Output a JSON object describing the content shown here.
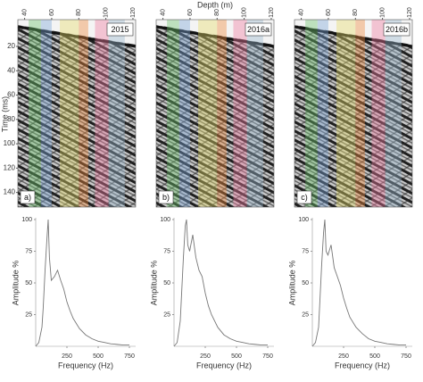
{
  "chart_data": [
    {
      "type": "image",
      "label": "2015",
      "panel": "a)",
      "xlim": [
        35,
        122
      ],
      "xticks": [
        40,
        60,
        80,
        100,
        120
      ],
      "ylim": [
        -2,
        152
      ],
      "yticks": [
        20,
        40,
        60,
        80,
        100,
        120,
        140
      ],
      "ylabel": "Time (ms)",
      "bands": [
        {
          "start": 43,
          "end": 52,
          "color": "#6cc46c"
        },
        {
          "start": 52,
          "end": 60,
          "color": "#7aa6d8"
        },
        {
          "start": 66,
          "end": 80,
          "color": "#e6dc6a"
        },
        {
          "start": 80,
          "end": 87,
          "color": "#f08a3c"
        },
        {
          "start": 92,
          "end": 102,
          "color": "#f07aa0"
        },
        {
          "start": 102,
          "end": 114,
          "color": "#9ab8d0"
        }
      ]
    },
    {
      "type": "image",
      "title": "Depth (m)",
      "label": "2016a",
      "panel": "b)",
      "xlim": [
        35,
        122
      ],
      "xticks": [
        40,
        60,
        80,
        100,
        120
      ],
      "bands": [
        {
          "start": 43,
          "end": 52,
          "color": "#6cc46c"
        },
        {
          "start": 52,
          "end": 60,
          "color": "#7aa6d8"
        },
        {
          "start": 66,
          "end": 80,
          "color": "#e6dc6a"
        },
        {
          "start": 80,
          "end": 87,
          "color": "#f08a3c"
        },
        {
          "start": 92,
          "end": 102,
          "color": "#f07aa0"
        },
        {
          "start": 102,
          "end": 114,
          "color": "#9ab8d0"
        }
      ]
    },
    {
      "type": "image",
      "label": "2016b",
      "panel": "c)",
      "xlim": [
        35,
        122
      ],
      "xticks": [
        40,
        60,
        80,
        100,
        120
      ],
      "bands": [
        {
          "start": 43,
          "end": 52,
          "color": "#6cc46c"
        },
        {
          "start": 52,
          "end": 60,
          "color": "#7aa6d8"
        },
        {
          "start": 66,
          "end": 80,
          "color": "#e6dc6a"
        },
        {
          "start": 80,
          "end": 87,
          "color": "#f08a3c"
        },
        {
          "start": 92,
          "end": 102,
          "color": "#f07aa0"
        },
        {
          "start": 102,
          "end": 114,
          "color": "#9ab8d0"
        }
      ]
    },
    {
      "type": "line",
      "xlabel": "Frequency (Hz)",
      "ylabel": "Amplitude %",
      "color": "#777777",
      "xlim": [
        0,
        800
      ],
      "ylim": [
        0,
        100
      ],
      "xticks": [
        250,
        500,
        750
      ],
      "yticks": [
        25,
        50,
        75,
        100
      ],
      "x": [
        0,
        25,
        50,
        60,
        75,
        90,
        100,
        110,
        125,
        150,
        175,
        200,
        225,
        250,
        275,
        300,
        350,
        400,
        450,
        500,
        550,
        600,
        650,
        700,
        750
      ],
      "values": [
        0,
        3,
        15,
        30,
        60,
        85,
        100,
        70,
        52,
        55,
        60,
        52,
        45,
        35,
        28,
        22,
        14,
        9,
        6,
        4,
        3,
        2,
        1.5,
        1,
        1
      ]
    },
    {
      "type": "line",
      "xlabel": "Frequency (Hz)",
      "ylabel": "Amplitude %",
      "color": "#777777",
      "xlim": [
        0,
        800
      ],
      "ylim": [
        0,
        100
      ],
      "xticks": [
        250,
        500,
        750
      ],
      "yticks": [
        25,
        50,
        75,
        100
      ],
      "x": [
        0,
        25,
        50,
        60,
        75,
        90,
        100,
        110,
        125,
        150,
        175,
        200,
        225,
        250,
        275,
        300,
        350,
        400,
        450,
        500,
        550,
        600,
        650,
        700,
        750
      ],
      "values": [
        0,
        3,
        20,
        40,
        70,
        95,
        100,
        80,
        75,
        88,
        70,
        60,
        55,
        42,
        32,
        25,
        15,
        9,
        6,
        4,
        3,
        2,
        1.5,
        1,
        1
      ]
    },
    {
      "type": "line",
      "xlabel": "Frequency (Hz)",
      "ylabel": "Amplitude %",
      "color": "#777777",
      "xlim": [
        0,
        800
      ],
      "ylim": [
        0,
        100
      ],
      "xticks": [
        250,
        500,
        750
      ],
      "yticks": [
        25,
        50,
        75,
        100
      ],
      "x": [
        0,
        25,
        50,
        60,
        75,
        90,
        100,
        110,
        125,
        150,
        175,
        200,
        225,
        250,
        275,
        300,
        350,
        400,
        450,
        500,
        550,
        600,
        650,
        700,
        750
      ],
      "values": [
        0,
        3,
        15,
        35,
        65,
        90,
        100,
        75,
        72,
        80,
        62,
        55,
        48,
        38,
        30,
        23,
        15,
        10,
        6,
        4,
        3,
        2,
        1.5,
        1,
        1
      ]
    }
  ]
}
